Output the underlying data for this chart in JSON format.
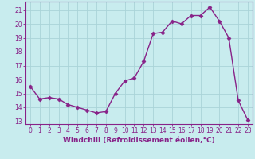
{
  "x": [
    0,
    1,
    2,
    3,
    4,
    5,
    6,
    7,
    8,
    9,
    10,
    11,
    12,
    13,
    14,
    15,
    16,
    17,
    18,
    19,
    20,
    21,
    22,
    23
  ],
  "y": [
    15.5,
    14.6,
    14.7,
    14.6,
    14.2,
    14.0,
    13.8,
    13.6,
    13.7,
    15.0,
    15.9,
    16.1,
    17.3,
    19.3,
    19.4,
    20.2,
    20.0,
    20.6,
    20.6,
    21.2,
    20.2,
    19.0,
    14.5,
    13.1
  ],
  "line_color": "#882288",
  "marker": "D",
  "marker_size": 2.5,
  "bg_color": "#c8ecee",
  "grid_color": "#aad4d8",
  "xlabel": "Windchill (Refroidissement éolien,°C)",
  "ylim": [
    12.8,
    21.6
  ],
  "xlim": [
    -0.5,
    23.5
  ],
  "yticks": [
    13,
    14,
    15,
    16,
    17,
    18,
    19,
    20,
    21
  ],
  "xticks": [
    0,
    1,
    2,
    3,
    4,
    5,
    6,
    7,
    8,
    9,
    10,
    11,
    12,
    13,
    14,
    15,
    16,
    17,
    18,
    19,
    20,
    21,
    22,
    23
  ],
  "tick_label_size": 5.5,
  "xlabel_fontsize": 6.5
}
